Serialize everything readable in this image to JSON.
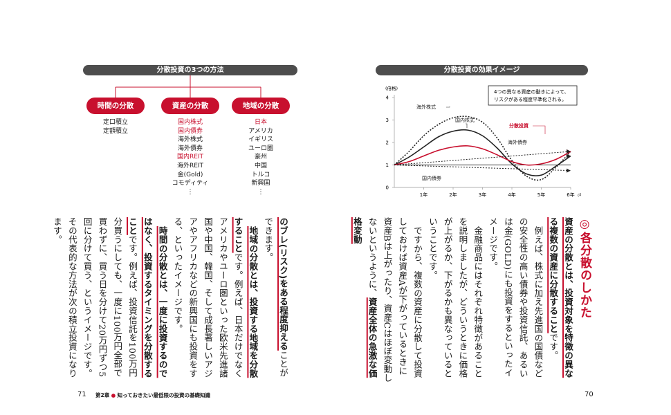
{
  "left_figure": {
    "title": "分散投資の3つの方法",
    "categories": [
      {
        "label": "時間の分散",
        "items": [
          {
            "text": "定口積立",
            "red": false
          },
          {
            "text": "定額積立",
            "red": false
          }
        ]
      },
      {
        "label": "資産の分散",
        "items": [
          {
            "text": "国内株式",
            "red": true
          },
          {
            "text": "国内債券",
            "red": true
          },
          {
            "text": "海外株式",
            "red": false
          },
          {
            "text": "海外債券",
            "red": false
          },
          {
            "text": "国内REIT",
            "red": true
          },
          {
            "text": "海外REIT",
            "red": false
          },
          {
            "text": "金(Gold)",
            "red": false
          },
          {
            "text": "コモディティ",
            "red": false
          },
          {
            "text": "⋮",
            "red": false
          }
        ]
      },
      {
        "label": "地域の分散",
        "items": [
          {
            "text": "日本",
            "red": true
          },
          {
            "text": "アメリカ",
            "red": false
          },
          {
            "text": "イギリス",
            "red": false
          },
          {
            "text": "ユーロ圏",
            "red": false
          },
          {
            "text": "豪州",
            "red": false
          },
          {
            "text": "中国",
            "red": false
          },
          {
            "text": "トルコ",
            "red": false
          },
          {
            "text": "新興国",
            "red": false
          },
          {
            "text": "⋮",
            "red": false
          }
        ]
      }
    ]
  },
  "chart_data": {
    "type": "line",
    "title": "分散投資の効果イメージ",
    "ylabel": "(倍格)",
    "ylim": [
      0,
      4
    ],
    "yticks": [
      "0",
      "1",
      "2",
      "3",
      "4"
    ],
    "xticks": [
      "1年",
      "2年",
      "3年",
      "4年",
      "5年",
      "6年"
    ],
    "xunit": "(年数)",
    "xlim": [
      0,
      6
    ],
    "annotation": "4つの異なる資産の動きによって、リスクがある程度平準化される。",
    "series": [
      {
        "name": "海外株式",
        "style": "dotted",
        "x": [
          0,
          0.5,
          1,
          1.5,
          2,
          2.5,
          3,
          3.5,
          4,
          4.5,
          5,
          5.5,
          6
        ],
        "y": [
          1,
          1.6,
          2.3,
          2.8,
          3.1,
          3.15,
          2.9,
          2.2,
          1.2,
          0.5,
          0.35,
          0.9,
          1.6
        ]
      },
      {
        "name": "国内株式",
        "style": "solid-black",
        "x": [
          0,
          0.5,
          1,
          1.5,
          2,
          2.5,
          3,
          3.5,
          4,
          4.5,
          5,
          5.5,
          6
        ],
        "y": [
          1,
          1.35,
          1.8,
          2.25,
          2.5,
          2.55,
          2.3,
          1.75,
          1.05,
          0.6,
          0.55,
          0.95,
          1.4
        ]
      },
      {
        "name": "分散投資",
        "style": "solid-red",
        "x": [
          0,
          0.5,
          1,
          1.5,
          2,
          2.5,
          3,
          3.5,
          4,
          4.5,
          5,
          5.5,
          6
        ],
        "y": [
          1,
          1.15,
          1.4,
          1.65,
          1.8,
          1.85,
          1.72,
          1.45,
          1.15,
          1.0,
          1.05,
          1.25,
          1.6
        ]
      },
      {
        "name": "海外債券",
        "style": "dotted-straight",
        "x": [
          0,
          6
        ],
        "y": [
          1,
          1.6
        ]
      },
      {
        "name": "国内債券",
        "style": "dotted-straight",
        "x": [
          0,
          6
        ],
        "y": [
          1,
          0.75
        ]
      }
    ]
  },
  "right_text": {
    "heading": "◎各分散のしかた",
    "p1_bold": "資産の分散とは、投資対象を特徴の異なる複数の資産に分散すること",
    "p1_rest": "です。",
    "p2": "例えば、株式に加え先進国の国債などの安全性の高い債券や投資信託、あるいは金(GOLD)にも投資をするといったイメージです。",
    "p3": "金融商品にはそれぞれ特徴があることを説明しましたが、どういうときに価格が上がるか、下がるかも異なっているということです。",
    "p4_a": "ですから、複数の資産に分散して投資しておけば資産Aが下がっているときに資産Bは上がったり、資産Cはほぼ変動しないというように、",
    "p4_b": "資産全体の急激な価格変動"
  },
  "left_text": {
    "c1_bold": "のブレ(リスク)をある程度抑える",
    "c1_rest": "ことができます。",
    "p2_bold": "地域の分散とは、投資する地域を分散すること",
    "p2_rest": "です。例えば、日本だけでなくアメリカやユーロ圏といった欧米先進諸国や中国、韓国、そして成長著しいアジアやアフリカなどの新興国にも投資をする、といったイメージです。",
    "p3_bold": "時間の分散とは、一度に投資するのではなく、投資するタイミングを分散すること",
    "p3_rest": "です。例えば、投資信託を100万円分買うにしても、一度に100万円全部で買わずに、買う日を分けて20万円ずつ5回に分けて買う、というイメージです。その代表的な方法が次の積立投資になります。"
  },
  "footer": {
    "page_left": "71",
    "page_right": "70",
    "chapter": "第2章",
    "bullet": "●",
    "chapter_title": "知っておきたい最低限の投資の基礎知識"
  }
}
